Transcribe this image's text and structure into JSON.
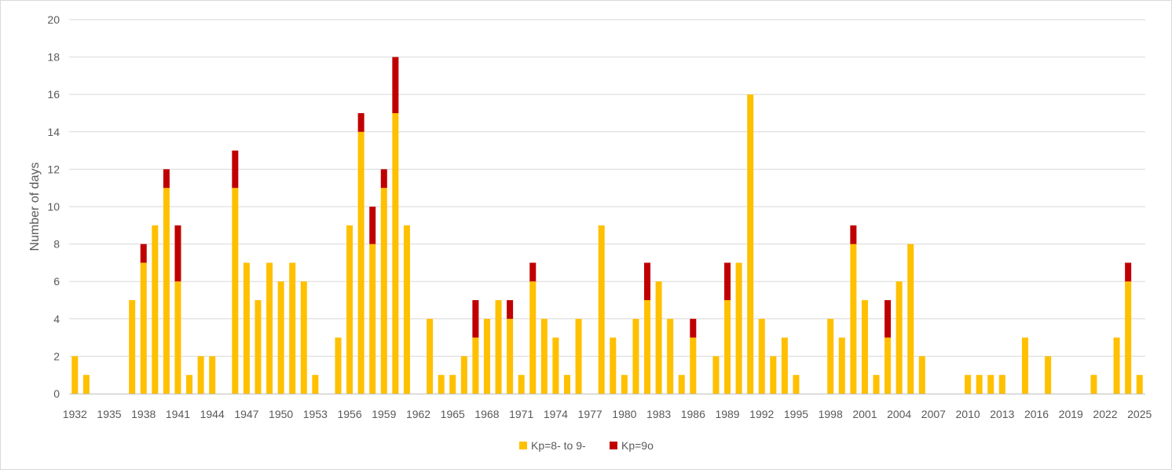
{
  "chart_data": {
    "type": "bar",
    "stacked": true,
    "title": "",
    "xlabel": "",
    "ylabel": "Number of days",
    "ylim": [
      0,
      20
    ],
    "yticks": [
      0,
      2,
      4,
      6,
      8,
      10,
      12,
      14,
      16,
      18,
      20
    ],
    "grid": true,
    "legend_position": "bottom",
    "x_tick_labels": [
      "1932",
      "1935",
      "1938",
      "1941",
      "1944",
      "1947",
      "1950",
      "1953",
      "1956",
      "1959",
      "1962",
      "1965",
      "1968",
      "1971",
      "1974",
      "1977",
      "1980",
      "1983",
      "1986",
      "1989",
      "1992",
      "1995",
      "1998",
      "2001",
      "2004",
      "2007",
      "2010",
      "2013",
      "2016",
      "2019",
      "2022",
      "2025"
    ],
    "categories": [
      1932,
      1933,
      1934,
      1935,
      1936,
      1937,
      1938,
      1939,
      1940,
      1941,
      1942,
      1943,
      1944,
      1945,
      1946,
      1947,
      1948,
      1949,
      1950,
      1951,
      1952,
      1953,
      1954,
      1955,
      1956,
      1957,
      1958,
      1959,
      1960,
      1961,
      1962,
      1963,
      1964,
      1965,
      1966,
      1967,
      1968,
      1969,
      1970,
      1971,
      1972,
      1973,
      1974,
      1975,
      1976,
      1977,
      1978,
      1979,
      1980,
      1981,
      1982,
      1983,
      1984,
      1985,
      1986,
      1987,
      1988,
      1989,
      1990,
      1991,
      1992,
      1993,
      1994,
      1995,
      1996,
      1997,
      1998,
      1999,
      2000,
      2001,
      2002,
      2003,
      2004,
      2005,
      2006,
      2007,
      2008,
      2009,
      2010,
      2011,
      2012,
      2013,
      2014,
      2015,
      2016,
      2017,
      2018,
      2019,
      2020,
      2021,
      2022,
      2023,
      2024,
      2025
    ],
    "series": [
      {
        "name": "Kp=8- to 9-",
        "color": "#FFC000",
        "values": [
          2,
          1,
          0,
          0,
          0,
          5,
          7,
          9,
          11,
          6,
          1,
          2,
          2,
          0,
          11,
          7,
          5,
          7,
          6,
          7,
          6,
          1,
          0,
          3,
          9,
          14,
          8,
          11,
          15,
          9,
          0,
          4,
          1,
          1,
          2,
          3,
          4,
          5,
          4,
          1,
          6,
          4,
          3,
          1,
          4,
          0,
          9,
          3,
          1,
          4,
          5,
          6,
          4,
          1,
          3,
          0,
          2,
          5,
          7,
          16,
          4,
          2,
          3,
          1,
          0,
          0,
          4,
          3,
          8,
          5,
          1,
          3,
          6,
          8,
          2,
          0,
          0,
          0,
          1,
          1,
          1,
          1,
          0,
          3,
          0,
          2,
          0,
          0,
          0,
          1,
          0,
          3,
          6,
          1
        ]
      },
      {
        "name": "Kp=9o",
        "color": "#C00000",
        "values": [
          0,
          0,
          0,
          0,
          0,
          0,
          1,
          0,
          1,
          3,
          0,
          0,
          0,
          0,
          2,
          0,
          0,
          0,
          0,
          0,
          0,
          0,
          0,
          0,
          0,
          1,
          2,
          1,
          3,
          0,
          0,
          0,
          0,
          0,
          0,
          2,
          0,
          0,
          1,
          0,
          1,
          0,
          0,
          0,
          0,
          0,
          0,
          0,
          0,
          0,
          2,
          0,
          0,
          0,
          1,
          0,
          0,
          2,
          0,
          0,
          0,
          0,
          0,
          0,
          0,
          0,
          0,
          0,
          1,
          0,
          0,
          2,
          0,
          0,
          0,
          0,
          0,
          0,
          0,
          0,
          0,
          0,
          0,
          0,
          0,
          0,
          0,
          0,
          0,
          0,
          0,
          0,
          1,
          0
        ]
      }
    ]
  }
}
